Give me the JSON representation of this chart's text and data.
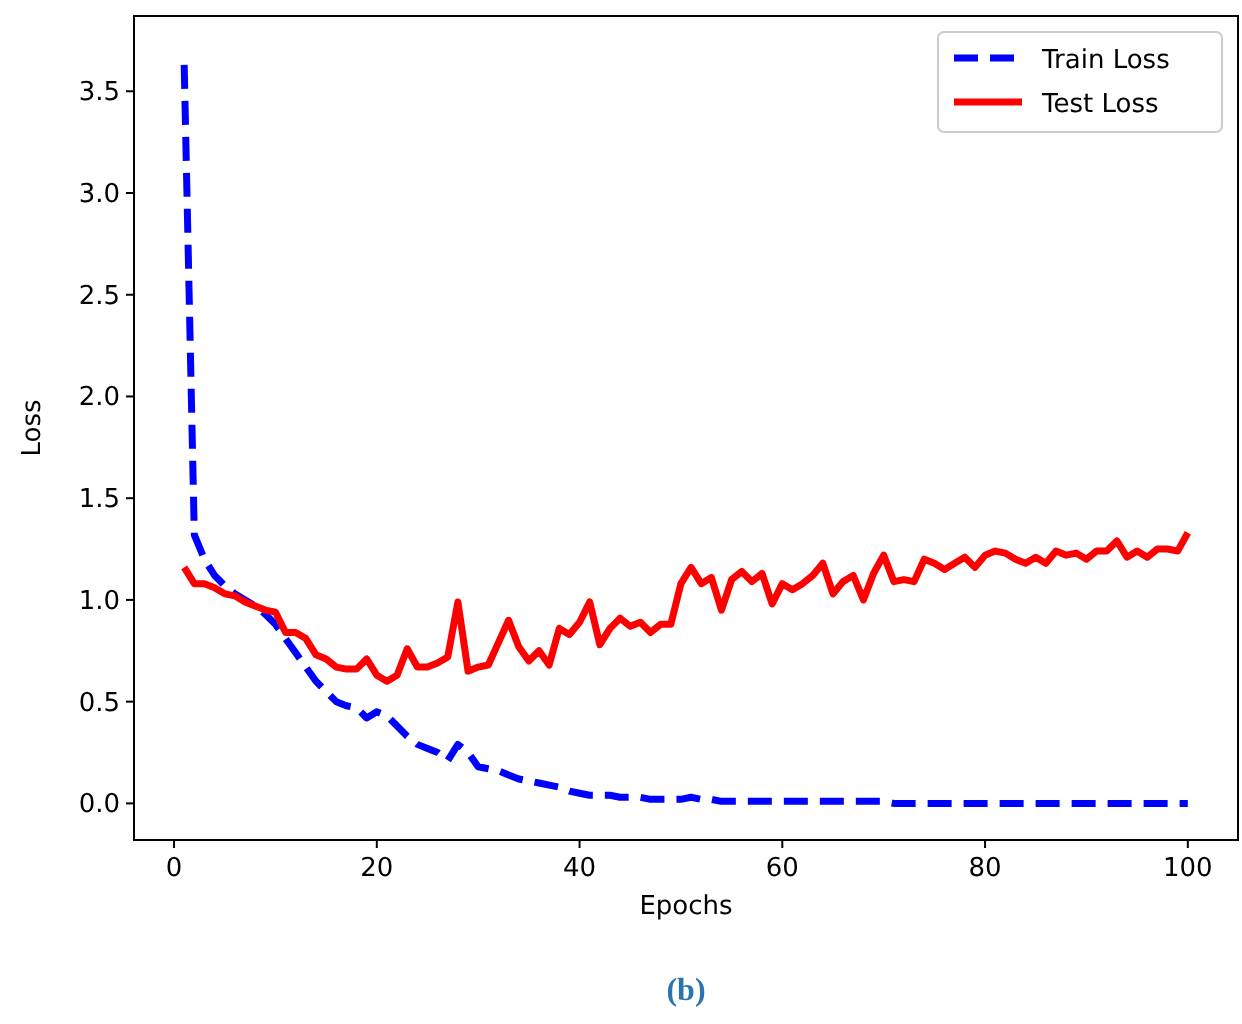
{
  "chart_data": {
    "type": "line",
    "xlabel": "Epochs",
    "ylabel": "Loss",
    "x": [
      1,
      2,
      3,
      4,
      5,
      6,
      7,
      8,
      9,
      10,
      11,
      12,
      13,
      14,
      15,
      16,
      17,
      18,
      19,
      20,
      21,
      22,
      23,
      24,
      25,
      26,
      27,
      28,
      29,
      30,
      31,
      32,
      33,
      34,
      35,
      36,
      37,
      38,
      39,
      40,
      41,
      42,
      43,
      44,
      45,
      46,
      47,
      48,
      49,
      50,
      51,
      52,
      53,
      54,
      55,
      56,
      57,
      58,
      59,
      60,
      61,
      62,
      63,
      64,
      65,
      66,
      67,
      68,
      69,
      70,
      71,
      72,
      73,
      74,
      75,
      76,
      77,
      78,
      79,
      80,
      81,
      82,
      83,
      84,
      85,
      86,
      87,
      88,
      89,
      90,
      91,
      92,
      93,
      94,
      95,
      96,
      97,
      98,
      99,
      100
    ],
    "series": [
      {
        "name": "Train Loss",
        "color": "#0000ff",
        "line_style": "dashed",
        "values": [
          3.63,
          1.32,
          1.2,
          1.12,
          1.07,
          1.03,
          1.0,
          0.97,
          0.93,
          0.88,
          0.81,
          0.74,
          0.67,
          0.6,
          0.55,
          0.5,
          0.48,
          0.47,
          0.42,
          0.45,
          0.43,
          0.38,
          0.33,
          0.29,
          0.27,
          0.25,
          0.21,
          0.29,
          0.25,
          0.18,
          0.17,
          0.16,
          0.14,
          0.12,
          0.11,
          0.1,
          0.09,
          0.08,
          0.06,
          0.05,
          0.04,
          0.04,
          0.04,
          0.03,
          0.03,
          0.03,
          0.02,
          0.02,
          0.02,
          0.02,
          0.03,
          0.02,
          0.02,
          0.01,
          0.01,
          0.01,
          0.01,
          0.01,
          0.01,
          0.01,
          0.01,
          0.01,
          0.01,
          0.01,
          0.01,
          0.01,
          0.01,
          0.01,
          0.01,
          0.01,
          0,
          0,
          0,
          0,
          0,
          0,
          0,
          0,
          0,
          0,
          0,
          0,
          0,
          0,
          0,
          0,
          0,
          0,
          0,
          0,
          0,
          0,
          0,
          0,
          0,
          0,
          0,
          0,
          0,
          0
        ]
      },
      {
        "name": "Test Loss",
        "color": "#ff0000",
        "line_style": "solid",
        "values": [
          1.16,
          1.08,
          1.08,
          1.06,
          1.03,
          1.02,
          0.99,
          0.97,
          0.95,
          0.94,
          0.84,
          0.84,
          0.81,
          0.73,
          0.71,
          0.67,
          0.66,
          0.66,
          0.71,
          0.63,
          0.6,
          0.63,
          0.76,
          0.67,
          0.67,
          0.69,
          0.72,
          0.99,
          0.65,
          0.67,
          0.68,
          0.79,
          0.9,
          0.77,
          0.7,
          0.75,
          0.68,
          0.86,
          0.83,
          0.89,
          0.99,
          0.78,
          0.86,
          0.91,
          0.87,
          0.89,
          0.84,
          0.88,
          0.88,
          1.08,
          1.16,
          1.08,
          1.11,
          0.95,
          1.1,
          1.14,
          1.09,
          1.13,
          0.98,
          1.08,
          1.05,
          1.08,
          1.12,
          1.18,
          1.03,
          1.09,
          1.12,
          1.0,
          1.13,
          1.22,
          1.09,
          1.1,
          1.09,
          1.2,
          1.18,
          1.15,
          1.18,
          1.21,
          1.16,
          1.22,
          1.24,
          1.23,
          1.2,
          1.18,
          1.21,
          1.18,
          1.24,
          1.22,
          1.23,
          1.2,
          1.24,
          1.24,
          1.29,
          1.21,
          1.24,
          1.21,
          1.25,
          1.25,
          1.24,
          1.33
        ]
      }
    ],
    "xlim": [
      -3.95,
      104.95
    ],
    "xticks": [
      0,
      20,
      40,
      60,
      80,
      100
    ],
    "ylim": [
      -0.18,
      3.87
    ],
    "yticks": [
      {
        "value": 0,
        "label": "0.0"
      },
      0.5,
      {
        "value": 1,
        "label": "1.0"
      },
      1.5,
      {
        "value": 2,
        "label": "2.0"
      },
      2.5,
      {
        "value": 3,
        "label": "3.0"
      },
      3.5
    ],
    "legend": "top right",
    "grid": false,
    "annotations": [
      "(b)"
    ]
  }
}
